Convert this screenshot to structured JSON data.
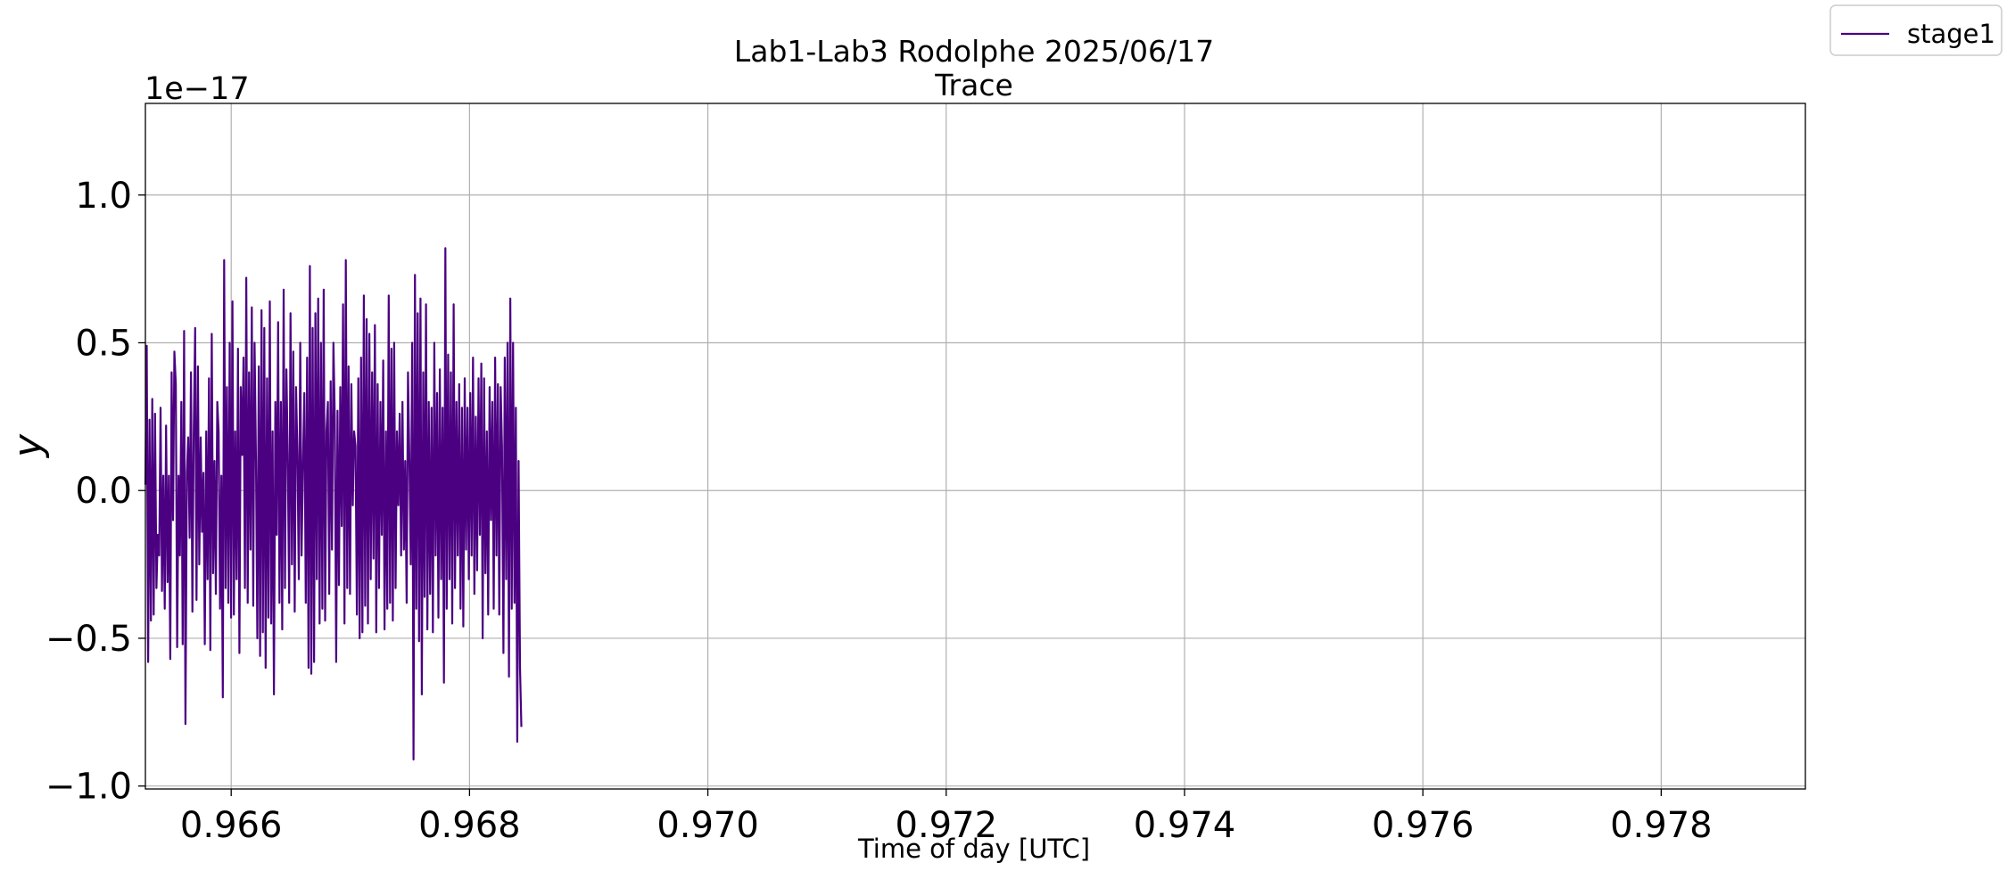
{
  "chart_data": {
    "type": "line",
    "title": "Lab1-Lab3 Rodolphe 2025/06/17",
    "subtitle": "Trace",
    "xlabel": "Time of day [UTC]",
    "ylabel": "y",
    "y_offset_label": "1e−17",
    "y_scale_factor": 1e-17,
    "xlim": [
      0.96528,
      0.97921
    ],
    "ylim": [
      -1.01,
      1.31
    ],
    "x_ticks": [
      0.966,
      0.968,
      0.97,
      0.972,
      0.974,
      0.976,
      0.978
    ],
    "x_tick_labels": [
      "0.966",
      "0.968",
      "0.970",
      "0.972",
      "0.974",
      "0.976",
      "0.978"
    ],
    "y_ticks": [
      -1.0,
      -0.5,
      0.0,
      0.5,
      1.0
    ],
    "y_tick_labels": [
      "−1.0",
      "−0.5",
      "0.0",
      "0.5",
      "1.0"
    ],
    "grid": true,
    "legend_position": "top-right outside",
    "series": [
      {
        "name": "stage1",
        "color": "#4b0082",
        "x_start": 0.96528,
        "x_step": 1.16e-05,
        "values": [
          0.02,
          0.49,
          -0.58,
          0.24,
          -0.44,
          0.31,
          -0.42,
          0.26,
          -0.33,
          -0.15,
          -0.22,
          0.28,
          -0.34,
          0.05,
          -0.4,
          0.22,
          -0.31,
          0.05,
          -0.57,
          0.4,
          -0.1,
          0.47,
          0.36,
          -0.53,
          0.05,
          -0.22,
          0.3,
          -0.52,
          0.54,
          -0.79,
          0.06,
          0.18,
          -0.16,
          0.4,
          -0.41,
          0.2,
          0.55,
          -0.37,
          0.42,
          -0.25,
          0.18,
          -0.14,
          0.06,
          -0.52,
          0.2,
          -0.3,
          0.38,
          -0.54,
          0.53,
          -0.28,
          0.1,
          -0.35,
          0.3,
          0.2,
          -0.4,
          0.05,
          -0.7,
          0.78,
          -0.33,
          0.35,
          -0.38,
          0.5,
          -0.43,
          0.64,
          -0.42,
          0.2,
          -0.3,
          0.48,
          -0.55,
          0.35,
          0.12,
          0.45,
          -0.33,
          0.72,
          -0.38,
          0.4,
          -0.2,
          0.62,
          -0.39,
          0.5,
          0.1,
          -0.5,
          0.42,
          -0.56,
          0.61,
          -0.48,
          0.55,
          -0.6,
          0.38,
          -0.43,
          0.64,
          -0.45,
          0.2,
          -0.69,
          0.3,
          -0.15,
          0.57,
          -0.38,
          0.3,
          -0.47,
          0.68,
          -0.33,
          0.41,
          0.12,
          -0.38,
          0.6,
          -0.25,
          0.47,
          -0.41,
          0.35,
          0.12,
          -0.3,
          0.5,
          -0.22,
          0.1,
          0.33,
          -0.38,
          0.45,
          -0.6,
          0.76,
          -0.62,
          0.55,
          -0.58,
          0.6,
          -0.3,
          0.65,
          -0.45,
          0.5,
          -0.4,
          0.68,
          -0.44,
          0.2,
          0.3,
          -0.35,
          0.37,
          -0.2,
          0.5,
          0.25,
          -0.58,
          0.27,
          -0.32,
          0.35,
          -0.12,
          0.63,
          -0.45,
          0.78,
          -0.33,
          0.42,
          -0.35,
          0.36,
          -0.05,
          0.2,
          0.15,
          -0.42,
          0.38,
          -0.5,
          0.45,
          -0.48,
          0.66,
          -0.39,
          0.58,
          -0.45,
          0.53,
          -0.3,
          0.4,
          -0.23,
          0.56,
          -0.48,
          0.36,
          -0.33,
          0.3,
          -0.15,
          0.44,
          -0.47,
          0.2,
          -0.4,
          0.66,
          -0.38,
          0.48,
          -0.44,
          0.5,
          -0.33,
          0.2,
          -0.05,
          0.26,
          -0.22,
          0.3,
          -0.2,
          0.1,
          -0.38,
          0.4,
          0.1,
          -0.25,
          0.5,
          -0.91,
          0.73,
          -0.4,
          0.6,
          -0.51,
          0.65,
          -0.69,
          0.4,
          -0.36,
          0.63,
          -0.47,
          0.3,
          -0.35,
          0.28,
          -0.48,
          0.5,
          -0.22,
          0.33,
          -0.43,
          0.41,
          -0.3,
          0.28,
          -0.65,
          0.82,
          -0.4,
          0.46,
          -0.3,
          0.4,
          -0.45,
          0.63,
          -0.33,
          0.3,
          -0.22,
          0.36,
          -0.4,
          0.28,
          -0.46,
          0.38,
          -0.2,
          0.28,
          -0.3,
          0.33,
          -0.22,
          0.45,
          -0.35,
          0.25,
          -0.27,
          0.38,
          -0.15,
          0.43,
          -0.5,
          0.38,
          -0.28,
          0.2,
          -0.42,
          0.35,
          -0.1,
          0.3,
          -0.4,
          0.45,
          -0.22,
          0.36,
          -0.42,
          0.35,
          0.15,
          -0.55,
          0.45,
          -0.3,
          0.5,
          -0.63,
          0.65,
          -0.4,
          0.5,
          -0.38,
          0.28,
          -0.85,
          0.1,
          -0.6,
          -0.8
        ]
      }
    ]
  }
}
